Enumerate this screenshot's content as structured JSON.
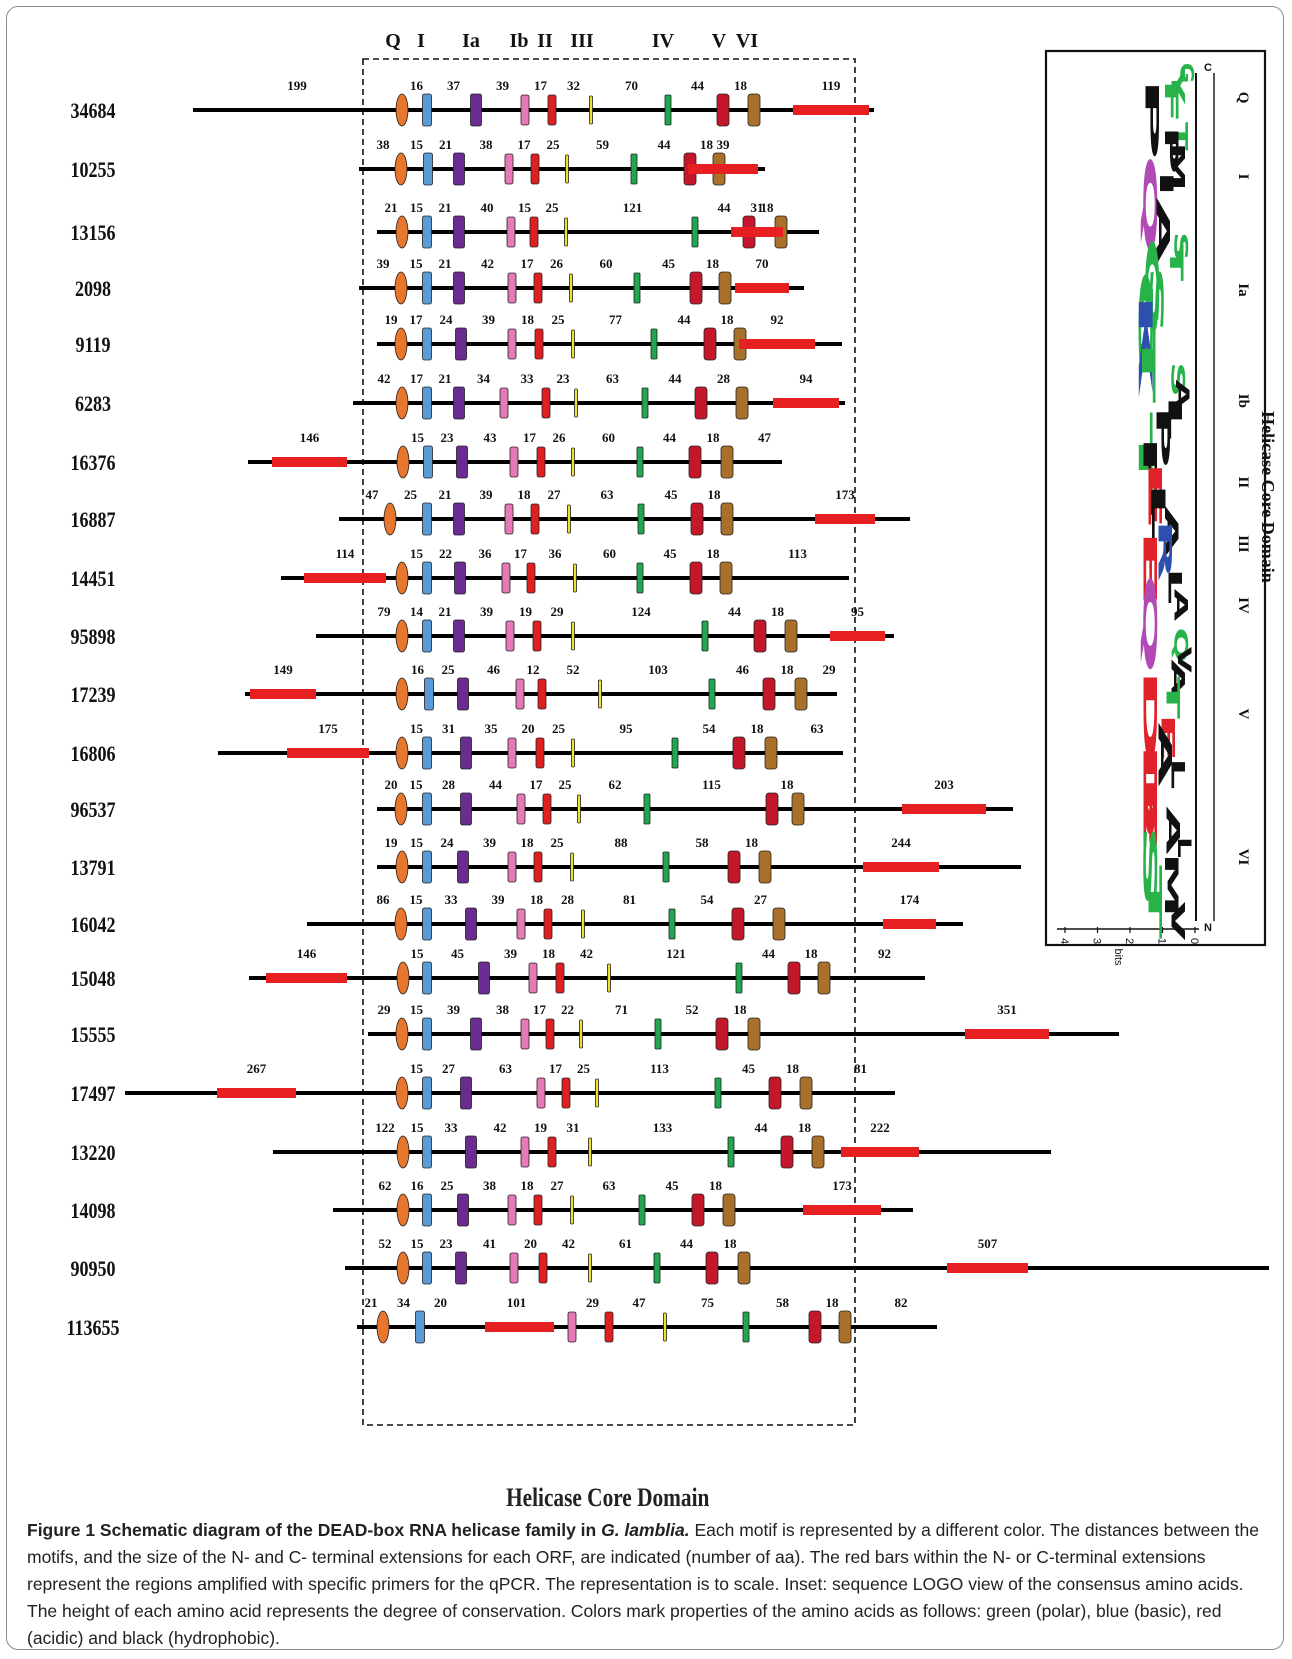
{
  "figure": {
    "motif_headers": [
      "Q",
      "I",
      "Ia",
      "Ib",
      "II",
      "III",
      "IV",
      "V",
      "VI"
    ],
    "helicase_core_label": "Helicase Core Domain",
    "colors": {
      "Q": "#e8762c",
      "I": "#5b9bd5",
      "Ia": "#6a2c91",
      "Ib": "#e879b9",
      "II": "#e02020",
      "III": "#f0e030",
      "IV": "#1fa84f",
      "V": "#c4182a",
      "VI": "#a8702a",
      "primer": "#e62020",
      "line": "#000000"
    },
    "orfs": [
      {
        "id": "34684",
        "n": "199",
        "gaps": [
          "16",
          "37",
          "39",
          "17",
          "32",
          "70",
          "44",
          "18"
        ],
        "c": "119",
        "primer": "C"
      },
      {
        "id": "10255",
        "n": "38",
        "gaps": [
          "15",
          "21",
          "38",
          "17",
          "25",
          "59",
          "44",
          "18"
        ],
        "c": "39",
        "primer": "C"
      },
      {
        "id": "13156",
        "n": "21",
        "gaps": [
          "15",
          "21",
          "40",
          "15",
          "25",
          "121",
          "44",
          "18"
        ],
        "c": "31",
        "primer": "C"
      },
      {
        "id": "2098",
        "n": "39",
        "gaps": [
          "15",
          "21",
          "42",
          "17",
          "26",
          "60",
          "45",
          "18"
        ],
        "c": "70",
        "primer": "C"
      },
      {
        "id": "9119",
        "n": "19",
        "gaps": [
          "17",
          "24",
          "39",
          "18",
          "25",
          "77",
          "44",
          "18"
        ],
        "c": "92",
        "primer": "C"
      },
      {
        "id": "6283",
        "n": "42",
        "gaps": [
          "17",
          "21",
          "34",
          "33",
          "23",
          "63",
          "44",
          "28"
        ],
        "c": "94",
        "primer": "C"
      },
      {
        "id": "16376",
        "n": "146",
        "gaps": [
          "15",
          "23",
          "43",
          "17",
          "26",
          "60",
          "44",
          "18"
        ],
        "c": "47",
        "primer": "N"
      },
      {
        "id": "16887",
        "n": "47",
        "gaps": [
          "25",
          "21",
          "39",
          "18",
          "27",
          "63",
          "45",
          "18"
        ],
        "c": "173",
        "primer": "C"
      },
      {
        "id": "14451",
        "n": "114",
        "gaps": [
          "15",
          "22",
          "36",
          "17",
          "36",
          "60",
          "45",
          "18"
        ],
        "c": "113",
        "primer": "N"
      },
      {
        "id": "95898",
        "n": "79",
        "gaps": [
          "14",
          "21",
          "39",
          "19",
          "29",
          "124",
          "44",
          "18"
        ],
        "c": "95",
        "primer": "C"
      },
      {
        "id": "17239",
        "n": "149",
        "gaps": [
          "16",
          "25",
          "46",
          "12",
          "52",
          "103",
          "46",
          "18"
        ],
        "c": "29",
        "primer": "N"
      },
      {
        "id": "16806",
        "n": "175",
        "gaps": [
          "15",
          "31",
          "35",
          "20",
          "25",
          "95",
          "54",
          "18"
        ],
        "c": "63",
        "primer": "N"
      },
      {
        "id": "96537",
        "n": "20",
        "gaps": [
          "15",
          "28",
          "44",
          "17",
          "25",
          "62",
          "115",
          "18"
        ],
        "c": "203",
        "primer": "C"
      },
      {
        "id": "13791",
        "n": "19",
        "gaps": [
          "15",
          "24",
          "39",
          "18",
          "25",
          "88",
          "58",
          "18"
        ],
        "c": "244",
        "primer": "C"
      },
      {
        "id": "16042",
        "n": "86",
        "gaps": [
          "15",
          "33",
          "39",
          "18",
          "28",
          "81",
          "54",
          "27"
        ],
        "c": "174",
        "primer": "C"
      },
      {
        "id": "15048",
        "n": "146",
        "gaps": [
          "15",
          "45",
          "39",
          "18",
          "42",
          "121",
          "44",
          "18"
        ],
        "c": "92",
        "primer": "N"
      },
      {
        "id": "15555",
        "n": "29",
        "gaps": [
          "15",
          "39",
          "38",
          "17",
          "22",
          "71",
          "52",
          "18"
        ],
        "c": "351",
        "primer": "C"
      },
      {
        "id": "17497",
        "n": "267",
        "gaps": [
          "15",
          "27",
          "63",
          "17",
          "25",
          "113",
          "45",
          "18"
        ],
        "c": "81",
        "primer": "N"
      },
      {
        "id": "13220",
        "n": "122",
        "gaps": [
          "15",
          "33",
          "42",
          "19",
          "31",
          "133",
          "44",
          "18"
        ],
        "c": "222",
        "primer": "C"
      },
      {
        "id": "14098",
        "n": "62",
        "gaps": [
          "16",
          "25",
          "38",
          "18",
          "27",
          "63",
          "45",
          "18"
        ],
        "c": "173",
        "primer": "C"
      },
      {
        "id": "90950",
        "n": "52",
        "gaps": [
          "15",
          "23",
          "41",
          "20",
          "42",
          "61",
          "44",
          "18"
        ],
        "c": "507",
        "primer": "C"
      },
      {
        "id": "113655",
        "n": "21",
        "gaps": [
          "34",
          "20",
          "101",
          "29",
          "47",
          "75",
          "58",
          "18"
        ],
        "c": "82",
        "primer": "Ia"
      }
    ]
  },
  "inset": {
    "title": "Helicase Core Domain",
    "motifs": [
      "Q",
      "I",
      "Ia",
      "Ib",
      "II",
      "III",
      "IV",
      "V",
      "VI"
    ],
    "axis_label": "bits",
    "axis_ticks": [
      "4",
      "3",
      "2",
      "1",
      "0"
    ],
    "n_end": "N",
    "c_end": "C",
    "logo_colors": {
      "polar": "#27b24a",
      "basic": "#2e4fae",
      "acidic": "#e0222a",
      "hydrophobic": "#111111",
      "special": "#b24ab5"
    }
  },
  "caption": {
    "title_prefix": "Figure 1 Schematic diagram of the DEAD-box RNA helicase family in ",
    "title_species": "G. lamblia.",
    "body": " Each motif is represented by a different color. The distances between the motifs, and the size of the N- and C- terminal extensions for each ORF, are indicated (number of aa). The red bars within the N- or C-terminal extensions represent the regions amplified with specific primers for the qPCR. The representation is to scale. Inset: sequence LOGO view of the consensus amino acids. The height of each amino acid represents the degree of conservation. Colors mark properties of the amino acids as follows: green (polar), blue (basic), red (acidic) and black (hydrophobic)."
  }
}
